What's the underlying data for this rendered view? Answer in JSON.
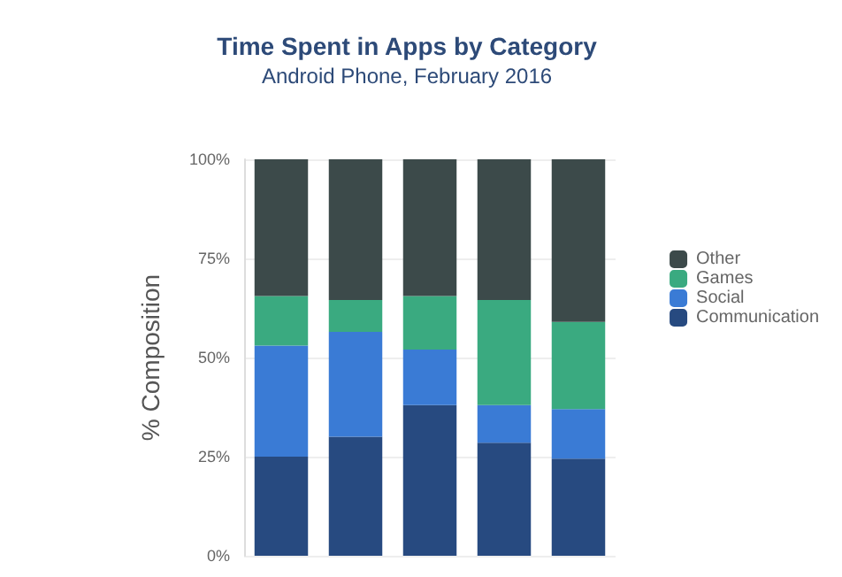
{
  "chart_data": {
    "type": "bar",
    "title": "Time Spent in Apps by Category",
    "subtitle": "Android Phone, February 2016",
    "ylabel": "% Composition",
    "categories": [
      null,
      null,
      null,
      null,
      null
    ],
    "stacked": true,
    "series": [
      {
        "name": "Communication",
        "color": "#274a80",
        "values": [
          25,
          30,
          38,
          28.5,
          24.5
        ]
      },
      {
        "name": "Social",
        "color": "#3a7bd5",
        "values": [
          28,
          26.5,
          14,
          9.5,
          12.5
        ]
      },
      {
        "name": "Games",
        "color": "#3aaa80",
        "values": [
          12.5,
          8,
          13.5,
          26.5,
          22
        ]
      },
      {
        "name": "Other",
        "color": "#3c4a4a",
        "values": [
          34.5,
          35.5,
          34.5,
          35.5,
          41
        ]
      }
    ],
    "ylim": [
      0,
      100
    ],
    "yticks": [
      {
        "value": 0,
        "label": "0%"
      },
      {
        "value": 25,
        "label": "25%"
      },
      {
        "value": 50,
        "label": "50%"
      },
      {
        "value": 75,
        "label": "75%"
      },
      {
        "value": 100,
        "label": "100%"
      }
    ],
    "grid": "y",
    "legend": "right"
  }
}
